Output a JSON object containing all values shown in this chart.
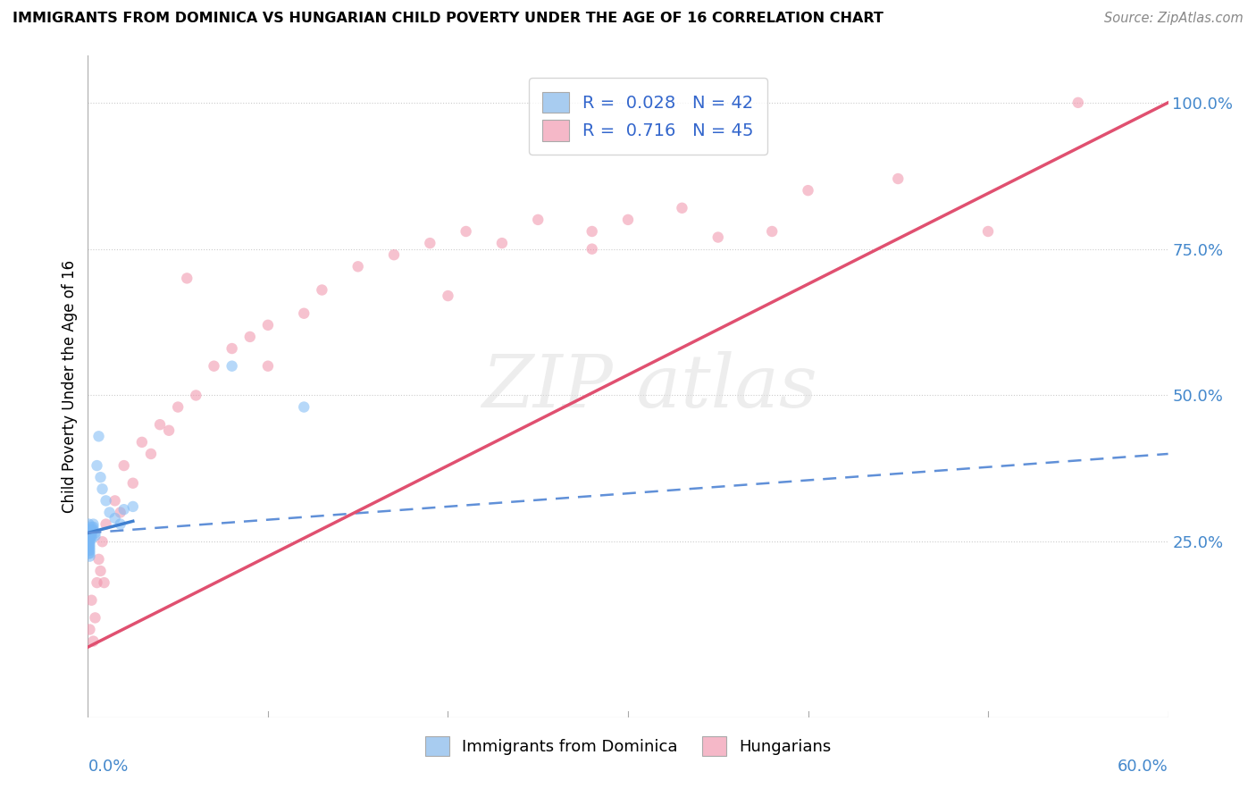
{
  "title": "IMMIGRANTS FROM DOMINICA VS HUNGARIAN CHILD POVERTY UNDER THE AGE OF 16 CORRELATION CHART",
  "source": "Source: ZipAtlas.com",
  "ylabel": "Child Poverty Under the Age of 16",
  "legend1_color": "#a8ccf0",
  "legend2_color": "#f5b8c8",
  "legend1_label": "R =  0.028   N = 42",
  "legend2_label": "R =  0.716   N = 45",
  "legend_label1": "Immigrants from Dominica",
  "legend_label2": "Hungarians",
  "blue_color": "#7ab8f5",
  "pink_color": "#f090a8",
  "blue_line_color": "#4080d0",
  "blue_dash_color": "#6090d8",
  "pink_line_color": "#e05070",
  "tick_color": "#4488cc",
  "xmin": 0.0,
  "xmax": 0.6,
  "ymin": -0.05,
  "ymax": 1.08,
  "blue_scatter_x": [
    0.0005,
    0.0005,
    0.0005,
    0.0005,
    0.0005,
    0.0005,
    0.0005,
    0.0005,
    0.0005,
    0.0005,
    0.001,
    0.001,
    0.001,
    0.001,
    0.001,
    0.001,
    0.001,
    0.001,
    0.001,
    0.001,
    0.002,
    0.002,
    0.002,
    0.002,
    0.002,
    0.003,
    0.003,
    0.003,
    0.004,
    0.004,
    0.005,
    0.006,
    0.007,
    0.008,
    0.01,
    0.012,
    0.015,
    0.018,
    0.02,
    0.025,
    0.08,
    0.12
  ],
  "blue_scatter_y": [
    0.27,
    0.28,
    0.265,
    0.26,
    0.255,
    0.25,
    0.245,
    0.24,
    0.235,
    0.23,
    0.27,
    0.265,
    0.26,
    0.255,
    0.25,
    0.245,
    0.24,
    0.235,
    0.23,
    0.225,
    0.275,
    0.27,
    0.265,
    0.26,
    0.255,
    0.28,
    0.275,
    0.27,
    0.265,
    0.26,
    0.38,
    0.43,
    0.36,
    0.34,
    0.32,
    0.3,
    0.29,
    0.28,
    0.305,
    0.31,
    0.55,
    0.48
  ],
  "pink_scatter_x": [
    0.001,
    0.002,
    0.003,
    0.004,
    0.005,
    0.006,
    0.007,
    0.008,
    0.009,
    0.01,
    0.015,
    0.018,
    0.02,
    0.025,
    0.03,
    0.035,
    0.04,
    0.045,
    0.05,
    0.055,
    0.06,
    0.07,
    0.08,
    0.09,
    0.1,
    0.12,
    0.13,
    0.15,
    0.17,
    0.19,
    0.21,
    0.23,
    0.25,
    0.28,
    0.3,
    0.33,
    0.35,
    0.4,
    0.45,
    0.5,
    0.1,
    0.2,
    0.28,
    0.38,
    0.55
  ],
  "pink_scatter_y": [
    0.1,
    0.15,
    0.08,
    0.12,
    0.18,
    0.22,
    0.2,
    0.25,
    0.18,
    0.28,
    0.32,
    0.3,
    0.38,
    0.35,
    0.42,
    0.4,
    0.45,
    0.44,
    0.48,
    0.7,
    0.5,
    0.55,
    0.58,
    0.6,
    0.62,
    0.64,
    0.68,
    0.72,
    0.74,
    0.76,
    0.78,
    0.76,
    0.8,
    0.78,
    0.8,
    0.82,
    0.77,
    0.85,
    0.87,
    0.78,
    0.55,
    0.67,
    0.75,
    0.78,
    1.0
  ],
  "blue_solid_line_x": [
    0.0,
    0.025
  ],
  "blue_solid_line_y": [
    0.265,
    0.285
  ],
  "blue_dash_line_x": [
    0.0,
    0.6
  ],
  "blue_dash_line_y": [
    0.265,
    0.4
  ],
  "pink_line_x": [
    0.0,
    0.6
  ],
  "pink_line_y": [
    0.07,
    1.0
  ]
}
